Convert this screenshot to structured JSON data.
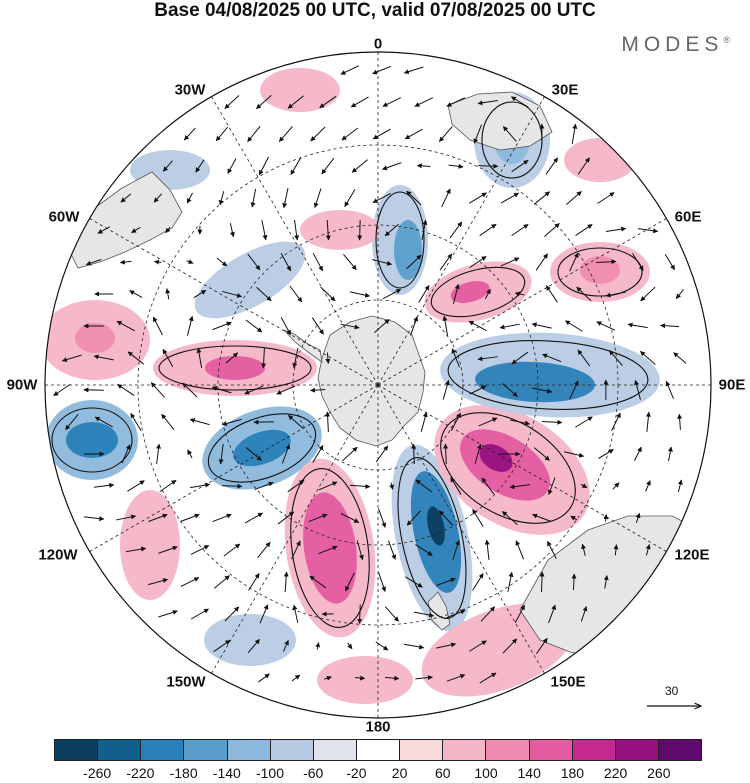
{
  "title": "Base 04/08/2025 00 UTC, valid 07/08/2025 00 UTC",
  "brand": {
    "text": "MODES",
    "mark": "®"
  },
  "longitude_labels": {
    "top": "0",
    "bottom": "180",
    "left": "90W",
    "right": "90E",
    "lon30w": "30W",
    "lon30e": "30E",
    "lon60w": "60W",
    "lon60e": "60E",
    "lon120w": "120W",
    "lon120e": "120E",
    "lon150w": "150W",
    "lon150e": "150E"
  },
  "reference_vector": {
    "label": "30"
  },
  "colorbar": {
    "colors": [
      "#0b3d5e",
      "#105f8d",
      "#2a80b8",
      "#5a9fcc",
      "#8bb8dc",
      "#b8cbe4",
      "#e1e3ef",
      "#ffffff",
      "#f9dada",
      "#f5b5c6",
      "#f08cb2",
      "#e45ba0",
      "#c4298f",
      "#96117f",
      "#5e0a6e"
    ],
    "ticks": [
      "-260",
      "-220",
      "-180",
      "-140",
      "-100",
      "-60",
      "-20",
      "20",
      "60",
      "100",
      "140",
      "180",
      "220",
      "260"
    ]
  }
}
